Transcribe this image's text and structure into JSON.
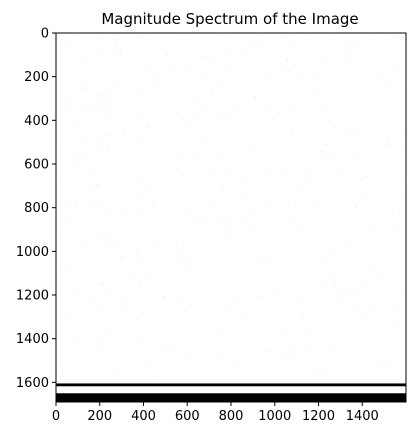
{
  "chart_data": {
    "type": "heatmap",
    "title": "Magnitude Spectrum of the Image",
    "xlabel": "",
    "ylabel": "",
    "xlim": [
      0,
      1600
    ],
    "ylim": [
      1690,
      0
    ],
    "x_ticks": [
      0,
      200,
      400,
      600,
      800,
      1000,
      1200,
      1400
    ],
    "x_tick_labels": [
      "0",
      "200",
      "400",
      "600",
      "800",
      "1000",
      "1200",
      "1400"
    ],
    "y_ticks": [
      0,
      200,
      400,
      600,
      800,
      1000,
      1200,
      1400,
      1600
    ],
    "y_tick_labels": [
      "0",
      "200",
      "400",
      "600",
      "800",
      "1000",
      "1200",
      "1400",
      "1600"
    ],
    "grid": false,
    "legend": "none",
    "image_description_values": {
      "background_color": "#ffffff",
      "dark_bands": [
        {
          "y_start": 1605,
          "y_end": 1618,
          "color": "#000000"
        },
        {
          "y_start": 1650,
          "y_end": 1690,
          "color": "#000000"
        }
      ]
    }
  }
}
